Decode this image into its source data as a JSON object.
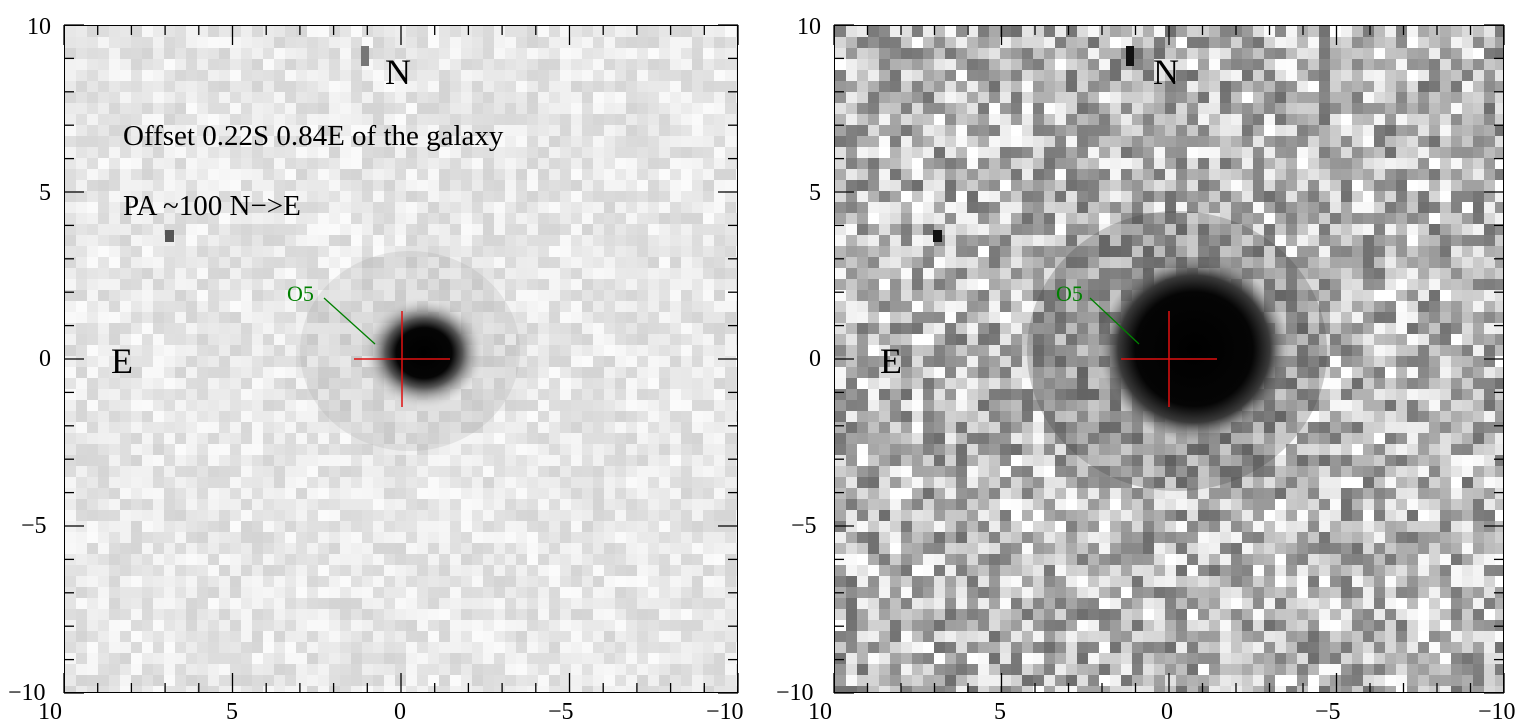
{
  "panels": [
    {
      "id": "left",
      "contrast": "low",
      "labels": {
        "north": "N",
        "east": "E",
        "offset": "Offset 0.22S 0.84E of the galaxy",
        "pa": "PA ~100 N−>E",
        "source": "O5"
      }
    },
    {
      "id": "right",
      "contrast": "high",
      "labels": {
        "north": "N",
        "east": "E",
        "offset": "",
        "pa": "",
        "source": "O5"
      }
    }
  ],
  "axes": {
    "x_range": [
      10,
      -10
    ],
    "y_range": [
      -10,
      10
    ],
    "x_ticks": [
      "10",
      "5",
      "0",
      "−5",
      "−10"
    ],
    "y_ticks": [
      "10",
      "5",
      "0",
      "−5",
      "−10"
    ]
  },
  "colors": {
    "crosshair": "#e01010",
    "source_marker": "#008000",
    "image_bg": "#f0f0f0",
    "object": "#000000"
  }
}
